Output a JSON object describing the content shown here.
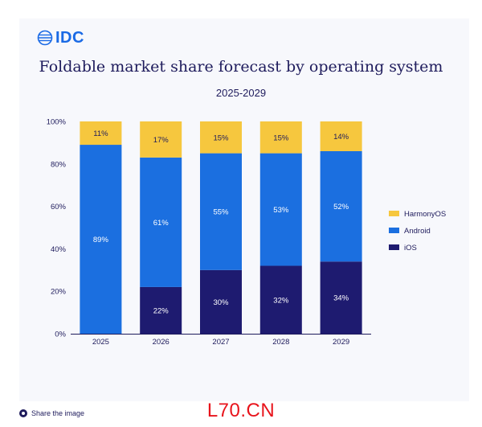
{
  "brand": {
    "name": "IDC"
  },
  "chart_data": {
    "type": "bar",
    "stacked": true,
    "title": "Foldable market share forecast by operating system",
    "subtitle": "2025-2029",
    "categories": [
      "2025",
      "2026",
      "2027",
      "2028",
      "2029"
    ],
    "series": [
      {
        "name": "iOS",
        "color": "#1e1b70",
        "values": [
          0,
          22,
          30,
          32,
          34
        ],
        "labels": [
          "",
          "22%",
          "30%",
          "32%",
          "34%"
        ]
      },
      {
        "name": "Android",
        "color": "#1b6fe0",
        "values": [
          89,
          61,
          55,
          53,
          52
        ],
        "labels": [
          "89%",
          "61%",
          "55%",
          "53%",
          "52%"
        ]
      },
      {
        "name": "HarmonyOS",
        "color": "#f6c73e",
        "values": [
          11,
          17,
          15,
          15,
          14
        ],
        "labels": [
          "11%",
          "17%",
          "15%",
          "15%",
          "14%"
        ]
      }
    ],
    "legend_order": [
      "HarmonyOS",
      "Android",
      "iOS"
    ],
    "legend_position": "right",
    "ylim": [
      0,
      100
    ],
    "yticks": [
      "0%",
      "20%",
      "40%",
      "60%",
      "80%",
      "100%"
    ],
    "xlabel": "",
    "ylabel": ""
  },
  "footer": {
    "share_label": "Share the image"
  },
  "watermark": {
    "text": "L70.CN"
  }
}
